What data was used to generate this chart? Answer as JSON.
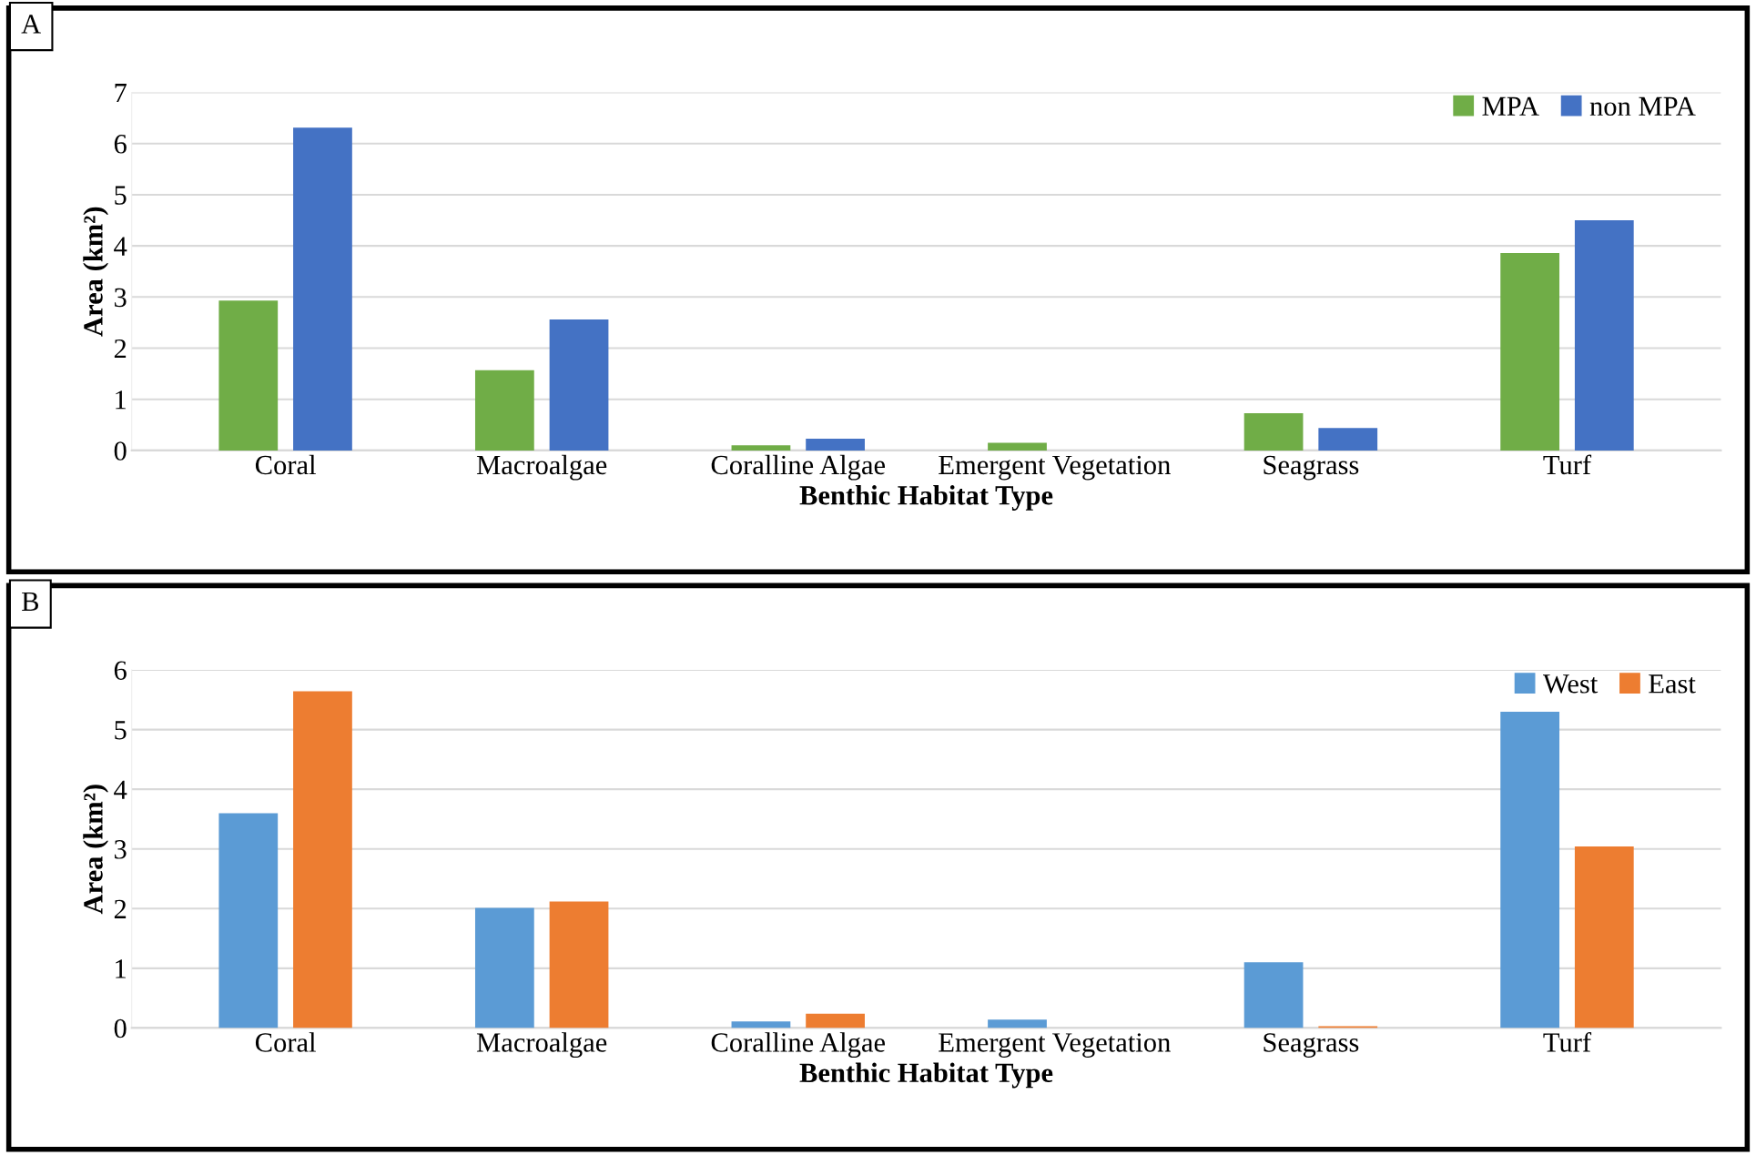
{
  "chart_data": [
    {
      "type": "bar",
      "categories": [
        "Coral",
        "Macroalgae",
        "Coralline Algae",
        "Emergent Vegetation",
        "Seagrass",
        "Turf"
      ],
      "xlabel": "Benthic Habitat Type",
      "ylabel": "Area (km²)",
      "annotations": [
        "A"
      ],
      "series": [
        {
          "name": "MPA",
          "color": "#70ad47",
          "values": [
            2.93,
            1.57,
            0.1,
            0.15,
            0.73,
            3.86
          ]
        },
        {
          "name": "non MPA",
          "color": "#4472c4",
          "values": [
            6.31,
            2.56,
            0.23,
            0,
            0.44,
            4.5
          ]
        }
      ],
      "ylim": [
        0,
        7
      ],
      "yticks": [
        0,
        1,
        2,
        3,
        4,
        5,
        6,
        7
      ],
      "grid": "y",
      "legend": "top right"
    },
    {
      "type": "bar",
      "categories": [
        "Coral",
        "Macroalgae",
        "Coralline Algae",
        "Emergent Vegetation",
        "Seagrass",
        "Turf"
      ],
      "xlabel": "Benthic Habitat Type",
      "ylabel": "Area (km²)",
      "annotations": [
        "B"
      ],
      "series": [
        {
          "name": "West",
          "color": "#5b9bd5",
          "values": [
            3.6,
            2.01,
            0.11,
            0.14,
            1.1,
            5.3
          ]
        },
        {
          "name": "East",
          "color": "#ed7d31",
          "values": [
            5.64,
            2.12,
            0.24,
            0,
            0.03,
            3.04
          ]
        }
      ],
      "ylim": [
        0,
        6
      ],
      "yticks": [
        0,
        1,
        2,
        3,
        4,
        5,
        6
      ],
      "grid": "y",
      "legend": "top right"
    }
  ]
}
